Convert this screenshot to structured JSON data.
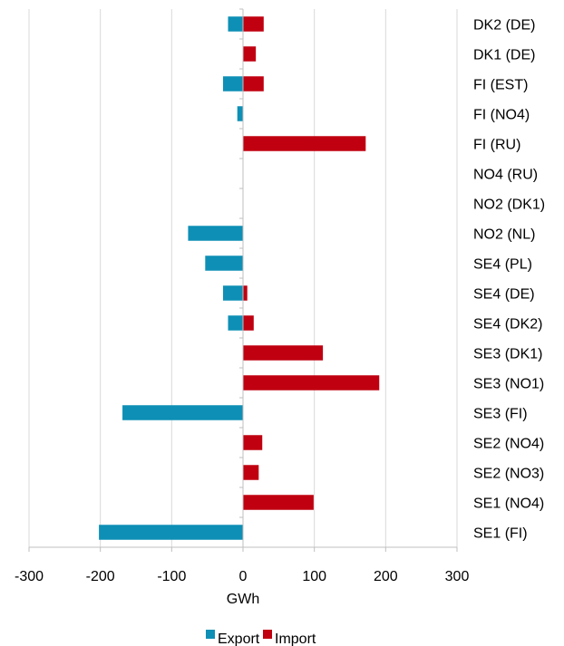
{
  "chart_data": {
    "type": "bar",
    "orientation": "horizontal",
    "categories": [
      "DK2 (DE)",
      "DK1 (DE)",
      "FI (EST)",
      "FI (NO4)",
      "FI (RU)",
      "NO4 (RU)",
      "NO2 (DK1)",
      "NO2 (NL)",
      "SE4 (PL)",
      "SE4 (DE)",
      "SE4 (DK2)",
      "SE3 (DK1)",
      "SE3 (NO1)",
      "SE3 (FI)",
      "SE2 (NO4)",
      "SE2 (NO3)",
      "SE1 (NO4)",
      "SE1 (FI)"
    ],
    "series": [
      {
        "name": "Export",
        "color": "#0e8fb5",
        "values": [
          -21,
          0,
          -28,
          -8,
          0,
          0,
          0,
          -77,
          -53,
          -28,
          -21,
          0,
          0,
          -169,
          0,
          0,
          0,
          -202
        ]
      },
      {
        "name": "Import",
        "color": "#c00010",
        "values": [
          29,
          18,
          29,
          0,
          172,
          0,
          0,
          0,
          0,
          6,
          15,
          112,
          191,
          0,
          27,
          22,
          99,
          0
        ]
      }
    ],
    "xlabel": "GWh",
    "xlim": [
      -300,
      300
    ],
    "xticks": [
      -300,
      -200,
      -100,
      0,
      100,
      200,
      300
    ],
    "grid": true,
    "legend_position": "bottom"
  }
}
